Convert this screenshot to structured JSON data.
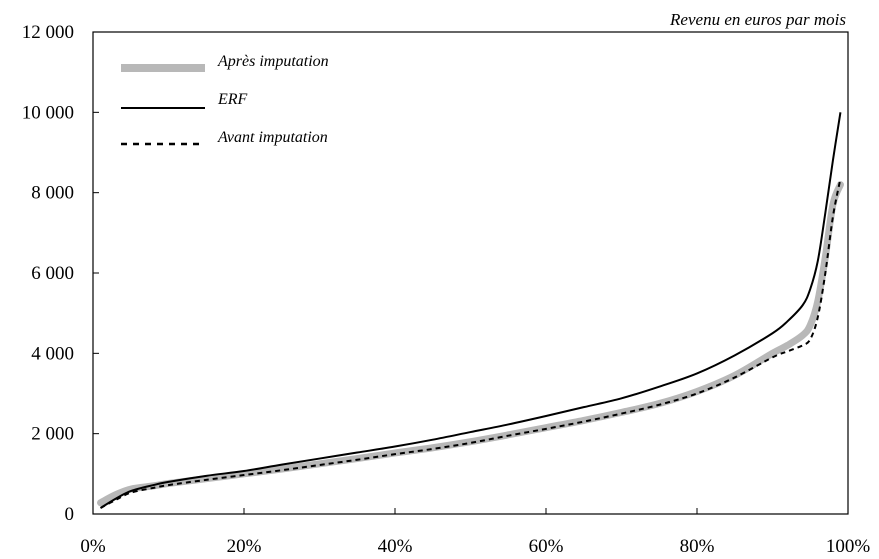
{
  "chart_data": {
    "type": "line",
    "title": "",
    "unit_label": "Revenu en euros par mois",
    "xlabel": "",
    "ylabel": "",
    "xlim": [
      0,
      100
    ],
    "ylim": [
      0,
      12000
    ],
    "grid": false,
    "legend_position": "top-left",
    "x_ticks": [
      0,
      20,
      40,
      60,
      80,
      100
    ],
    "x_tick_labels": [
      "0%",
      "20%",
      "40%",
      "60%",
      "80%",
      "100%"
    ],
    "y_ticks": [
      0,
      2000,
      4000,
      6000,
      8000,
      10000,
      12000
    ],
    "y_tick_labels": [
      "0",
      "2 000",
      "4 000",
      "6 000",
      "8 000",
      "10 000",
      "12 000"
    ],
    "series": [
      {
        "name": "Après imputation",
        "style": "thick-grey",
        "color": "#b8b8b8",
        "x": [
          1,
          3,
          5,
          8,
          10,
          15,
          20,
          25,
          30,
          35,
          40,
          45,
          50,
          55,
          60,
          65,
          70,
          75,
          80,
          85,
          90,
          92,
          94,
          95,
          96,
          97,
          98,
          99
        ],
        "y": [
          280,
          480,
          620,
          700,
          760,
          880,
          1000,
          1120,
          1250,
          1380,
          1520,
          1650,
          1800,
          1970,
          2150,
          2330,
          2530,
          2750,
          3050,
          3450,
          4000,
          4200,
          4450,
          4700,
          5300,
          6400,
          7700,
          8200
        ]
      },
      {
        "name": "ERF",
        "style": "solid-black",
        "color": "#000000",
        "x": [
          1,
          3,
          5,
          8,
          10,
          15,
          20,
          25,
          30,
          35,
          40,
          45,
          50,
          55,
          60,
          65,
          70,
          75,
          80,
          85,
          90,
          92,
          94,
          95,
          96,
          97,
          98,
          99
        ],
        "y": [
          150,
          380,
          570,
          720,
          800,
          950,
          1070,
          1230,
          1380,
          1530,
          1680,
          1850,
          2040,
          2230,
          2440,
          2660,
          2880,
          3170,
          3500,
          3950,
          4500,
          4800,
          5200,
          5600,
          6300,
          7500,
          8800,
          10000
        ]
      },
      {
        "name": "Avant imputation",
        "style": "dashed-black",
        "color": "#000000",
        "x": [
          1,
          3,
          5,
          8,
          10,
          15,
          20,
          25,
          30,
          35,
          40,
          45,
          50,
          55,
          60,
          65,
          70,
          75,
          80,
          85,
          90,
          92,
          94,
          95,
          96,
          97,
          98,
          99
        ],
        "y": [
          150,
          350,
          530,
          650,
          720,
          850,
          970,
          1090,
          1220,
          1350,
          1490,
          1620,
          1770,
          1950,
          2120,
          2300,
          2500,
          2720,
          3000,
          3400,
          3900,
          4050,
          4200,
          4350,
          4900,
          6000,
          7400,
          8350
        ]
      }
    ]
  },
  "colors": {
    "axis": "#000000",
    "background": "#ffffff"
  }
}
